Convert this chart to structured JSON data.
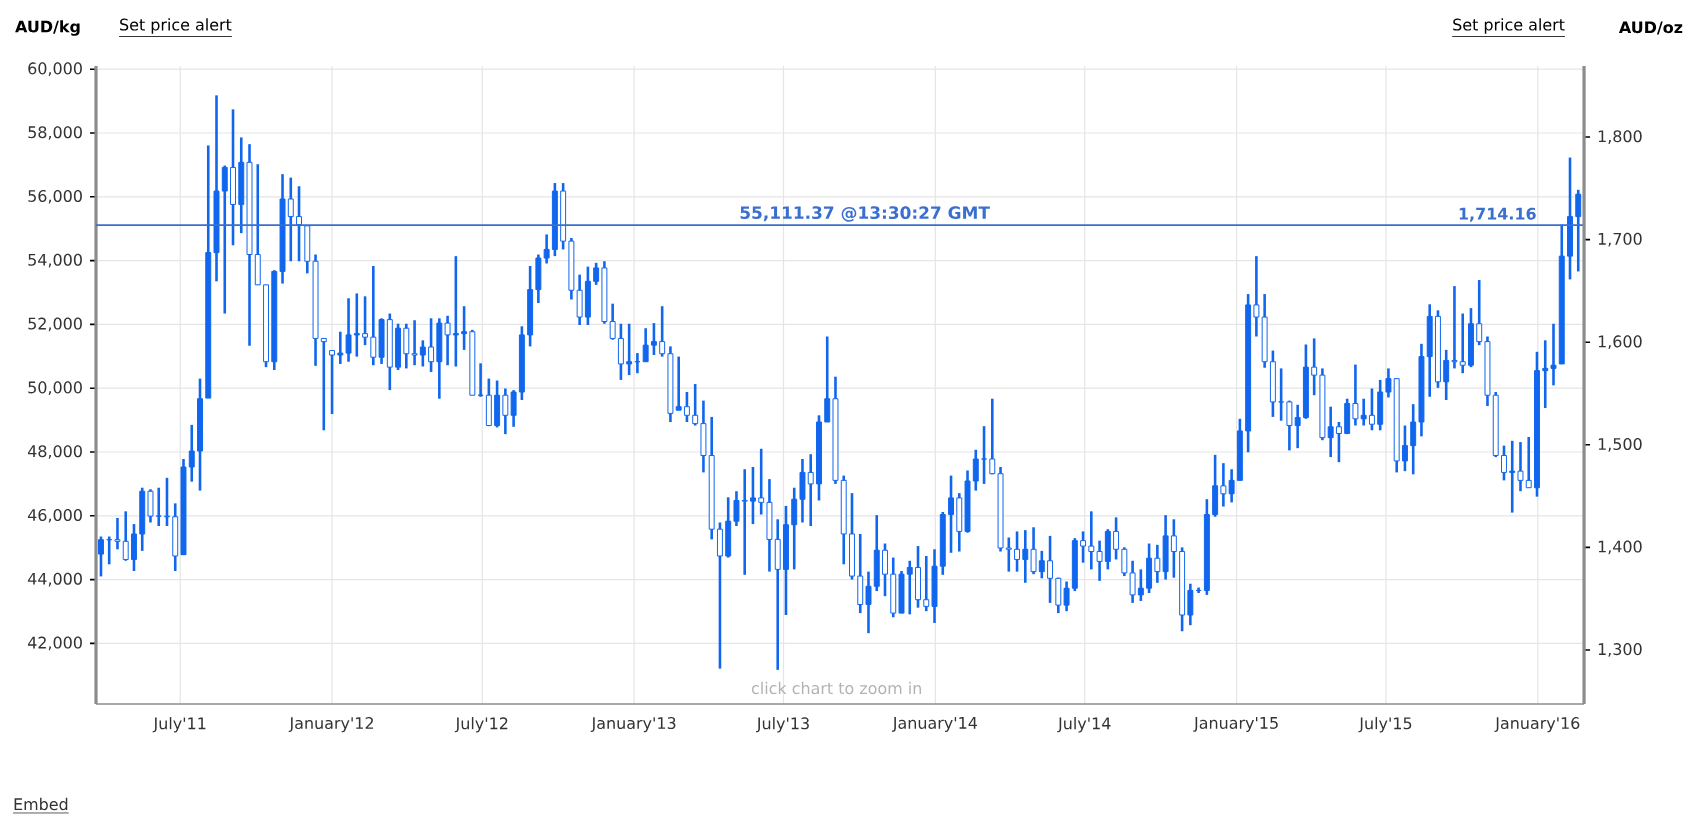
{
  "chart_data": {
    "type": "candlestick",
    "ylabel": "AUD/kg",
    "y2label": "AUD/oz",
    "color": "#1166ee",
    "grid": true,
    "annotations": [
      "Set price alert",
      "Set price alert",
      "click chart to zoom in",
      "Embed",
      "1,714.16"
    ],
    "xlim": [
      "2011-03-21",
      "2016-02-26"
    ],
    "ylim": [
      40100,
      60100
    ],
    "y2lim": [
      1247.3,
      1869.3
    ],
    "xticks": [
      {
        "value": "2011-07-01",
        "label": "July'11"
      },
      {
        "value": "2012-01-01",
        "label": "January'12"
      },
      {
        "value": "2012-07-01",
        "label": "July'12"
      },
      {
        "value": "2013-01-01",
        "label": "January'13"
      },
      {
        "value": "2013-07-01",
        "label": "July'13"
      },
      {
        "value": "2014-01-01",
        "label": "January'14"
      },
      {
        "value": "2014-07-01",
        "label": "July'14"
      },
      {
        "value": "2015-01-01",
        "label": "January'15"
      },
      {
        "value": "2015-07-01",
        "label": "July'15"
      },
      {
        "value": "2016-01-01",
        "label": "January'16"
      }
    ],
    "yticks": [
      {
        "value": 42000,
        "label": "42,000"
      },
      {
        "value": 44000,
        "label": "44,000"
      },
      {
        "value": 46000,
        "label": "46,000"
      },
      {
        "value": 48000,
        "label": "48,000"
      },
      {
        "value": 50000,
        "label": "50,000"
      },
      {
        "value": 52000,
        "label": "52,000"
      },
      {
        "value": 54000,
        "label": "54,000"
      },
      {
        "value": 56000,
        "label": "56,000"
      },
      {
        "value": 58000,
        "label": "58,000"
      },
      {
        "value": 60000,
        "label": "60,000"
      }
    ],
    "y2ticks": [
      {
        "value": 1300,
        "label": "1,300"
      },
      {
        "value": 1400,
        "label": "1,400"
      },
      {
        "value": 1500,
        "label": "1,500"
      },
      {
        "value": 1600,
        "label": "1,600"
      },
      {
        "value": 1700,
        "label": "1,700"
      },
      {
        "value": 1800,
        "label": "1,800"
      }
    ],
    "ref_lines": [
      {
        "axis": "y",
        "value": 55111.37,
        "label": "55,111.37 @13:30:27 GMT",
        "color": "#3a6fd0"
      }
    ],
    "x": [
      "2011-03-27",
      "2011-04-06",
      "2011-04-16",
      "2011-04-26",
      "2011-05-06",
      "2011-05-16",
      "2011-05-26",
      "2011-06-05",
      "2011-06-15",
      "2011-06-25",
      "2011-07-05",
      "2011-07-15",
      "2011-07-25",
      "2011-08-04",
      "2011-08-14",
      "2011-08-24",
      "2011-09-03",
      "2011-09-13",
      "2011-09-23",
      "2011-10-03",
      "2011-10-13",
      "2011-10-23",
      "2011-11-02",
      "2011-11-12",
      "2011-11-22",
      "2011-12-02",
      "2011-12-12",
      "2011-12-22",
      "2012-01-01",
      "2012-01-11",
      "2012-01-21",
      "2012-01-31",
      "2012-02-10",
      "2012-02-20",
      "2012-03-01",
      "2012-03-11",
      "2012-03-21",
      "2012-03-31",
      "2012-04-10",
      "2012-04-20",
      "2012-04-30",
      "2012-05-10",
      "2012-05-20",
      "2012-05-30",
      "2012-06-09",
      "2012-06-19",
      "2012-06-29",
      "2012-07-09",
      "2012-07-19",
      "2012-07-29",
      "2012-08-08",
      "2012-08-18",
      "2012-08-28",
      "2012-09-07",
      "2012-09-17",
      "2012-09-27",
      "2012-10-07",
      "2012-10-17",
      "2012-10-27",
      "2012-11-06",
      "2012-11-16",
      "2012-11-26",
      "2012-12-06",
      "2012-12-16",
      "2012-12-26",
      "2013-01-05",
      "2013-01-15",
      "2013-01-25",
      "2013-02-04",
      "2013-02-14",
      "2013-02-24",
      "2013-03-06",
      "2013-03-16",
      "2013-03-26",
      "2013-04-05",
      "2013-04-15",
      "2013-04-25",
      "2013-05-05",
      "2013-05-15",
      "2013-05-25",
      "2013-06-04",
      "2013-06-14",
      "2013-06-24",
      "2013-07-04",
      "2013-07-14",
      "2013-07-24",
      "2013-08-03",
      "2013-08-13",
      "2013-08-23",
      "2013-09-02",
      "2013-09-12",
      "2013-09-22",
      "2013-10-02",
      "2013-10-12",
      "2013-10-22",
      "2013-11-01",
      "2013-11-11",
      "2013-11-21",
      "2013-12-01",
      "2013-12-11",
      "2013-12-21",
      "2013-12-31",
      "2014-01-10",
      "2014-01-20",
      "2014-01-30",
      "2014-02-09",
      "2014-02-19",
      "2014-03-01",
      "2014-03-11",
      "2014-03-21",
      "2014-03-31",
      "2014-04-10",
      "2014-04-20",
      "2014-04-30",
      "2014-05-10",
      "2014-05-20",
      "2014-05-30",
      "2014-06-09",
      "2014-06-19",
      "2014-06-29",
      "2014-07-09",
      "2014-07-19",
      "2014-07-29",
      "2014-08-08",
      "2014-08-18",
      "2014-08-28",
      "2014-09-07",
      "2014-09-17",
      "2014-09-27",
      "2014-10-07",
      "2014-10-17",
      "2014-10-27",
      "2014-11-06",
      "2014-11-16",
      "2014-11-26",
      "2014-12-06",
      "2014-12-16",
      "2014-12-26",
      "2015-01-05",
      "2015-01-15",
      "2015-01-25",
      "2015-02-04",
      "2015-02-14",
      "2015-02-24",
      "2015-03-06",
      "2015-03-16",
      "2015-03-26",
      "2015-04-05",
      "2015-04-15",
      "2015-04-25",
      "2015-05-05",
      "2015-05-15",
      "2015-05-25",
      "2015-06-04",
      "2015-06-14",
      "2015-06-24",
      "2015-07-04",
      "2015-07-14",
      "2015-07-24",
      "2015-08-03",
      "2015-08-13",
      "2015-08-23",
      "2015-09-02",
      "2015-09-12",
      "2015-09-22",
      "2015-10-02",
      "2015-10-12",
      "2015-10-22",
      "2015-11-01",
      "2015-11-11",
      "2015-11-21",
      "2015-12-01",
      "2015-12-11",
      "2015-12-21",
      "2015-12-31",
      "2016-01-10",
      "2016-01-20",
      "2016-01-30",
      "2016-02-09",
      "2016-02-19"
    ],
    "ohlc": [
      [
        44800,
        45350,
        44100,
        45250
      ],
      [
        45250,
        45350,
        44480,
        45250
      ],
      [
        45250,
        45930,
        44950,
        45200
      ],
      [
        45200,
        46140,
        44590,
        44630
      ],
      [
        44630,
        45740,
        44270,
        45430
      ],
      [
        45430,
        46880,
        44900,
        46770
      ],
      [
        46770,
        46830,
        45790,
        45990
      ],
      [
        45990,
        46880,
        45680,
        45990
      ],
      [
        45990,
        47190,
        45680,
        45970
      ],
      [
        45970,
        46390,
        44270,
        44740
      ],
      [
        44780,
        47780,
        44780,
        47530
      ],
      [
        47530,
        48850,
        47070,
        48030
      ],
      [
        48030,
        50300,
        46790,
        49670
      ],
      [
        49690,
        57610,
        49690,
        54250
      ],
      [
        54250,
        59180,
        53350,
        56180
      ],
      [
        56180,
        56980,
        52340,
        56920
      ],
      [
        56920,
        58740,
        54480,
        55760
      ],
      [
        55760,
        57860,
        54860,
        57080
      ],
      [
        57080,
        57650,
        51330,
        54190
      ],
      [
        54190,
        57020,
        53240,
        53240
      ],
      [
        53240,
        53240,
        50660,
        50830
      ],
      [
        50830,
        53700,
        50570,
        53660
      ],
      [
        53660,
        56710,
        53280,
        55930
      ],
      [
        55930,
        56600,
        53980,
        55380
      ],
      [
        55380,
        56330,
        53980,
        55130
      ],
      [
        55090,
        55090,
        53600,
        53980
      ],
      [
        53980,
        54190,
        50700,
        51560
      ],
      [
        51560,
        51560,
        48680,
        51460
      ],
      [
        51180,
        51180,
        49190,
        51040
      ],
      [
        51040,
        51770,
        50760,
        51100
      ],
      [
        51100,
        52820,
        50830,
        51670
      ],
      [
        51670,
        52970,
        50990,
        51710
      ],
      [
        51710,
        52880,
        51350,
        51600
      ],
      [
        51600,
        53830,
        50720,
        50970
      ],
      [
        50970,
        52190,
        50760,
        52150
      ],
      [
        52150,
        52340,
        49940,
        50660
      ],
      [
        50660,
        52020,
        50570,
        51880
      ],
      [
        51880,
        52020,
        50620,
        51080
      ],
      [
        51080,
        52130,
        50720,
        51040
      ],
      [
        51040,
        51500,
        50680,
        51290
      ],
      [
        51290,
        52190,
        50510,
        50830
      ],
      [
        50830,
        52190,
        49670,
        52040
      ],
      [
        52040,
        52270,
        50720,
        51670
      ],
      [
        51670,
        54140,
        50680,
        51710
      ],
      [
        51710,
        52570,
        51200,
        51770
      ],
      [
        51770,
        51830,
        49780,
        49780
      ],
      [
        49780,
        50780,
        49730,
        49780
      ],
      [
        49780,
        50300,
        48810,
        48830
      ],
      [
        48830,
        50240,
        48770,
        49780
      ],
      [
        49780,
        49990,
        48560,
        49150
      ],
      [
        49150,
        49940,
        48790,
        49880
      ],
      [
        49880,
        51940,
        49630,
        51670
      ],
      [
        51670,
        53830,
        51310,
        53090
      ],
      [
        53090,
        54190,
        52670,
        54080
      ],
      [
        54080,
        54820,
        53910,
        54350
      ],
      [
        54350,
        56430,
        54140,
        56180
      ],
      [
        56180,
        56430,
        54350,
        54610
      ],
      [
        54610,
        54710,
        52780,
        53070
      ],
      [
        53070,
        53560,
        51980,
        52230
      ],
      [
        52230,
        53810,
        51980,
        53350
      ],
      [
        53350,
        53930,
        53240,
        53770
      ],
      [
        53770,
        53980,
        52020,
        52090
      ],
      [
        52090,
        52650,
        51520,
        51560
      ],
      [
        51560,
        52020,
        50260,
        50760
      ],
      [
        50760,
        52020,
        50410,
        50830
      ],
      [
        50830,
        51100,
        50470,
        50830
      ],
      [
        50830,
        51880,
        50830,
        51350
      ],
      [
        51350,
        52040,
        51040,
        51460
      ],
      [
        51460,
        52570,
        50990,
        51080
      ],
      [
        51080,
        51310,
        48940,
        49210
      ],
      [
        49310,
        50990,
        49310,
        49420
      ],
      [
        49420,
        49880,
        48940,
        49150
      ],
      [
        49150,
        50130,
        48830,
        48890
      ],
      [
        48890,
        49610,
        47360,
        47890
      ],
      [
        47890,
        49100,
        45260,
        45580
      ],
      [
        45580,
        45790,
        41210,
        44740
      ],
      [
        44740,
        46580,
        44690,
        45830
      ],
      [
        45830,
        46770,
        45680,
        46480
      ],
      [
        46480,
        47460,
        44150,
        46460
      ],
      [
        46460,
        47530,
        45740,
        46560
      ],
      [
        46560,
        48100,
        46040,
        46420
      ],
      [
        46420,
        47150,
        44250,
        45260
      ],
      [
        45260,
        45890,
        41170,
        44320
      ],
      [
        44320,
        46310,
        42890,
        45720
      ],
      [
        45720,
        46880,
        44320,
        46520
      ],
      [
        46520,
        47780,
        45790,
        47360
      ],
      [
        47360,
        47930,
        45680,
        47000
      ],
      [
        47000,
        49150,
        46480,
        48940
      ],
      [
        48940,
        51620,
        48940,
        49670
      ],
      [
        49670,
        50360,
        47000,
        47110
      ],
      [
        47110,
        47260,
        44480,
        45430
      ],
      [
        45430,
        46710,
        44000,
        44110
      ],
      [
        44110,
        45430,
        42950,
        43220
      ],
      [
        43220,
        44250,
        42320,
        43790
      ],
      [
        43790,
        46020,
        43640,
        44920
      ],
      [
        44920,
        45130,
        43480,
        44170
      ],
      [
        44170,
        44690,
        42820,
        42950
      ],
      [
        42950,
        44270,
        42950,
        44170
      ],
      [
        44170,
        44590,
        42910,
        44380
      ],
      [
        44380,
        45050,
        43120,
        43370
      ],
      [
        43370,
        44740,
        43010,
        43160
      ],
      [
        43160,
        44950,
        42640,
        44420
      ],
      [
        44420,
        46120,
        44150,
        46040
      ],
      [
        46040,
        47260,
        44840,
        46560
      ],
      [
        46560,
        46710,
        44880,
        45510
      ],
      [
        45510,
        47420,
        45470,
        47090
      ],
      [
        47090,
        48070,
        46790,
        47780
      ],
      [
        47780,
        48810,
        47000,
        47780
      ],
      [
        47780,
        49670,
        47300,
        47320
      ],
      [
        47320,
        47530,
        44880,
        44990
      ],
      [
        44990,
        45320,
        44250,
        44950
      ],
      [
        44950,
        45510,
        44250,
        44630
      ],
      [
        44630,
        45550,
        43900,
        44950
      ],
      [
        44950,
        45640,
        44170,
        44250
      ],
      [
        44250,
        44900,
        44040,
        44590
      ],
      [
        44590,
        45370,
        43270,
        44040
      ],
      [
        44040,
        44060,
        42950,
        43200
      ],
      [
        43200,
        43940,
        43010,
        43730
      ],
      [
        43730,
        45300,
        43640,
        45220
      ],
      [
        45220,
        45510,
        44530,
        45050
      ],
      [
        45050,
        46140,
        44320,
        44880
      ],
      [
        44880,
        45220,
        43960,
        44570
      ],
      [
        44570,
        45580,
        44320,
        45510
      ],
      [
        45510,
        45950,
        44630,
        44950
      ],
      [
        44950,
        45010,
        44110,
        44210
      ],
      [
        44210,
        44590,
        43270,
        43520
      ],
      [
        43520,
        44320,
        43330,
        43730
      ],
      [
        43730,
        45130,
        43580,
        44670
      ],
      [
        44670,
        45090,
        43900,
        44250
      ],
      [
        44250,
        46020,
        44000,
        45370
      ],
      [
        45370,
        45890,
        44060,
        44880
      ],
      [
        44880,
        45010,
        42380,
        42890
      ],
      [
        42890,
        43870,
        42570,
        43660
      ],
      [
        43660,
        43750,
        43580,
        43660
      ],
      [
        43660,
        46520,
        43520,
        46040
      ],
      [
        46040,
        47910,
        45970,
        46940
      ],
      [
        46940,
        47650,
        46290,
        46690
      ],
      [
        46690,
        47460,
        46420,
        47110
      ],
      [
        47110,
        49040,
        47110,
        48660
      ],
      [
        48660,
        52950,
        47990,
        52610
      ],
      [
        52610,
        54140,
        51620,
        52230
      ],
      [
        52230,
        52950,
        50640,
        50830
      ],
      [
        50830,
        51180,
        49100,
        49570
      ],
      [
        49570,
        50620,
        48980,
        49570
      ],
      [
        49570,
        49610,
        48050,
        48830
      ],
      [
        48830,
        49480,
        48120,
        49080
      ],
      [
        49080,
        51370,
        49040,
        50660
      ],
      [
        50660,
        51560,
        49780,
        50410
      ],
      [
        50410,
        50620,
        48370,
        48450
      ],
      [
        48450,
        49420,
        47840,
        48790
      ],
      [
        48790,
        48940,
        47680,
        48580
      ],
      [
        48580,
        49670,
        48560,
        49520
      ],
      [
        49520,
        50740,
        48830,
        49040
      ],
      [
        49040,
        49670,
        48830,
        49150
      ],
      [
        49150,
        49990,
        48680,
        48870
      ],
      [
        48870,
        50260,
        48680,
        49880
      ],
      [
        49880,
        50620,
        49710,
        50300
      ],
      [
        50300,
        50300,
        47360,
        47720
      ],
      [
        47720,
        48830,
        47400,
        48200
      ],
      [
        48200,
        49500,
        47300,
        48940
      ],
      [
        48940,
        51390,
        48490,
        50990
      ],
      [
        50990,
        52630,
        49730,
        52250
      ],
      [
        52250,
        52440,
        50010,
        50200
      ],
      [
        50200,
        51200,
        49630,
        50870
      ],
      [
        50870,
        53200,
        50620,
        50830
      ],
      [
        50830,
        52340,
        50470,
        50720
      ],
      [
        50720,
        52510,
        50660,
        52020
      ],
      [
        52020,
        53390,
        51350,
        51460
      ],
      [
        51460,
        51620,
        49440,
        49780
      ],
      [
        49780,
        49880,
        47840,
        47890
      ],
      [
        47890,
        48200,
        47110,
        47360
      ],
      [
        47360,
        48350,
        46100,
        47400
      ],
      [
        47400,
        48310,
        46770,
        47110
      ],
      [
        47110,
        48470,
        46880,
        46880
      ],
      [
        46880,
        51140,
        46600,
        50550
      ],
      [
        50550,
        51500,
        49380,
        50620
      ],
      [
        50620,
        52020,
        50090,
        50720
      ],
      [
        50760,
        55130,
        50760,
        54140
      ],
      [
        54140,
        57230,
        53410,
        55380
      ],
      [
        55380,
        56220,
        53660,
        56080
      ]
    ]
  }
}
